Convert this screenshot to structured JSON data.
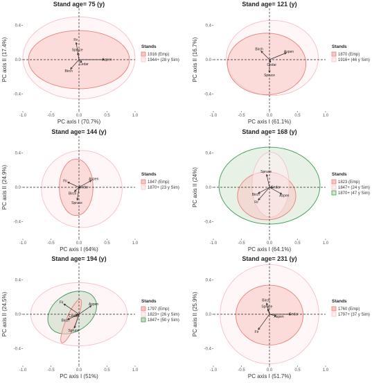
{
  "chart_data": [
    {
      "type": "scatter",
      "title": "Stand age= 75 (y)",
      "xlabel": "PC axis I (70.7%)",
      "ylabel": "PC axis II (17.4%)",
      "xticks": [
        "-1.0",
        "-0.5",
        "0.0",
        "0.5",
        "1.0"
      ],
      "yticks": [
        "-0.4",
        "0.0",
        "0.4"
      ],
      "xlim": [
        -1.0,
        1.0
      ],
      "ylim": [
        -0.6,
        0.6
      ],
      "legend_title": "Stands",
      "series": [
        {
          "name": "1916 (Emp)",
          "color": "#e8807a",
          "fill": "#f7c6c3",
          "ellipse": {
            "cx": 0.0,
            "cy": 0.0,
            "rx": 0.9,
            "ry": 0.34
          }
        },
        {
          "name": "1944+ (28 y Sim)",
          "color": "#f5c0c8",
          "fill": "#fdeef0",
          "ellipse": {
            "cx": 0.0,
            "cy": 0.02,
            "rx": 1.0,
            "ry": 0.48
          }
        }
      ],
      "loadings": [
        {
          "label": "Fir",
          "x": -0.05,
          "y": 0.2
        },
        {
          "label": "Spruce",
          "x": -0.02,
          "y": 0.08
        },
        {
          "label": "Aspen",
          "x": 0.45,
          "y": 0.0
        },
        {
          "label": "Cedar",
          "x": 0.05,
          "y": -0.03
        },
        {
          "label": "Birch",
          "x": -0.15,
          "y": -0.11
        }
      ]
    },
    {
      "type": "scatter",
      "title": "Stand age= 121 (y)",
      "xlabel": "PC axis I (61.1%)",
      "ylabel": "PC axis II (16.7%)",
      "xticks": [
        "-1.0",
        "-0.5",
        "0.0",
        "0.5",
        "1.0"
      ],
      "yticks": [
        "-0.4",
        "0.0",
        "0.4"
      ],
      "xlim": [
        -1.0,
        1.0
      ],
      "ylim": [
        -0.6,
        0.6
      ],
      "legend_title": "Stands",
      "series": [
        {
          "name": "1870 (Emp)",
          "color": "#e8807a",
          "fill": "#f7c6c3",
          "ellipse": {
            "cx": -0.05,
            "cy": -0.05,
            "rx": 0.7,
            "ry": 0.36
          }
        },
        {
          "name": "1916+ (46 y Sim)",
          "color": "#f5c0c8",
          "fill": "#fdeef0",
          "ellipse": {
            "cx": 0.05,
            "cy": 0.02,
            "rx": 0.82,
            "ry": 0.44
          }
        }
      ],
      "loadings": [
        {
          "label": "Birch",
          "x": -0.15,
          "y": 0.1
        },
        {
          "label": "Aspen",
          "x": 0.3,
          "y": 0.08
        },
        {
          "label": "Cedar",
          "x": 0.02,
          "y": -0.03
        },
        {
          "label": "Spruce",
          "x": 0.0,
          "y": -0.15
        }
      ]
    },
    {
      "type": "scatter",
      "title": "Stand age= 144 (y)",
      "xlabel": "PC axis I (64%)",
      "ylabel": "PC axis II (24.9%)",
      "xticks": [
        "-1.0",
        "-0.5",
        "0.0",
        "0.5",
        "1.0"
      ],
      "yticks": [
        "-0.4",
        "0.0",
        "0.4"
      ],
      "xlim": [
        -1.0,
        1.0
      ],
      "ylim": [
        -0.6,
        0.6
      ],
      "legend_title": "Stands",
      "series": [
        {
          "name": "1847 (Emp)",
          "color": "#e8807a",
          "fill": "#f7c6c3",
          "ellipse": {
            "cx": -0.05,
            "cy": 0.0,
            "rx": 0.3,
            "ry": 0.33
          }
        },
        {
          "name": "1870+ (23 y Sim)",
          "color": "#f5c0c8",
          "fill": "#fdeef0",
          "ellipse": {
            "cx": 0.05,
            "cy": -0.02,
            "rx": 0.72,
            "ry": 0.45
          }
        }
      ],
      "loadings": [
        {
          "label": "Fir",
          "x": -0.2,
          "y": 0.06
        },
        {
          "label": "Aspen",
          "x": 0.22,
          "y": 0.08
        },
        {
          "label": "Cedar",
          "x": 0.03,
          "y": 0.0
        },
        {
          "label": "Birch",
          "x": -0.08,
          "y": -0.05
        },
        {
          "label": "Spruce",
          "x": -0.03,
          "y": -0.15
        }
      ]
    },
    {
      "type": "scatter",
      "title": "Stand age= 168 (y)",
      "xlabel": "PC axis I (64.1%)",
      "ylabel": "PC axis II (24%)",
      "xticks": [
        "-1.0",
        "-0.5",
        "0.0",
        "0.5",
        "1.0"
      ],
      "yticks": [
        "-0.4",
        "0.0",
        "0.4"
      ],
      "xlim": [
        -1.0,
        1.0
      ],
      "ylim": [
        -0.6,
        0.6
      ],
      "legend_title": "Stands",
      "series": [
        {
          "name": "1823 (Emp)",
          "color": "#e8807a",
          "fill": "#f7c6c3",
          "ellipse": {
            "cx": -0.05,
            "cy": -0.1,
            "rx": 0.52,
            "ry": 0.28
          }
        },
        {
          "name": "1847+ (24 y Sim)",
          "color": "#f5c0c8",
          "fill": "#fdeef0",
          "ellipse": {
            "cx": 0.02,
            "cy": 0.03,
            "rx": 0.33,
            "ry": 0.38
          }
        },
        {
          "name": "1870+ (47 y Sim)",
          "color": "#3a9a52",
          "fill": "#d5e6d2",
          "ellipse": {
            "cx": 0.0,
            "cy": 0.02,
            "rx": 0.9,
            "ry": 0.45
          }
        }
      ],
      "loadings": [
        {
          "label": "Spruce",
          "x": -0.05,
          "y": 0.15
        },
        {
          "label": "Cedar",
          "x": 0.06,
          "y": 0.0
        },
        {
          "label": "Birch",
          "x": -0.2,
          "y": -0.07
        },
        {
          "label": "Fir",
          "x": -0.2,
          "y": -0.15
        },
        {
          "label": "Aspen",
          "x": 0.22,
          "y": -0.08
        }
      ]
    },
    {
      "type": "scatter",
      "title": "Stand age= 194 (y)",
      "xlabel": "PC axis I (51%)",
      "ylabel": "PC axis II (24.5%)",
      "xticks": [
        "-1.0",
        "-0.5",
        "0.0",
        "0.5",
        "1.0"
      ],
      "yticks": [
        "-0.4",
        "0.0",
        "0.4"
      ],
      "xlim": [
        -1.0,
        1.0
      ],
      "ylim": [
        -0.6,
        0.6
      ],
      "legend_title": "Stands",
      "series": [
        {
          "name": "1797 (Emp)",
          "color": "#e8807a",
          "fill": "#f7c6c3",
          "ellipse": {
            "cx": -0.14,
            "cy": -0.08,
            "rx": 0.42,
            "ry": 0.06,
            "angle": 67
          }
        },
        {
          "name": "1823+ (26 y Sim)",
          "color": "#f5c0c8",
          "fill": "#fdeef0",
          "ellipse": {
            "cx": 0.0,
            "cy": 0.0,
            "rx": 0.86,
            "ry": 0.37
          }
        },
        {
          "name": "1847+ (50 y Sim)",
          "color": "#3a9a52",
          "fill": "#c8d8c2",
          "ellipse": {
            "cx": -0.12,
            "cy": 0.02,
            "rx": 0.47,
            "ry": 0.22,
            "angle": 33
          }
        }
      ],
      "loadings": [
        {
          "label": "Fir",
          "x": -0.27,
          "y": 0.12
        },
        {
          "label": "Aspen",
          "x": 0.22,
          "y": 0.1
        },
        {
          "label": "Cedar",
          "x": -0.05,
          "y": -0.01
        },
        {
          "label": "Birch",
          "x": -0.2,
          "y": -0.06
        },
        {
          "label": "Spruce",
          "x": -0.08,
          "y": -0.16
        }
      ]
    },
    {
      "type": "scatter",
      "title": "Stand age= 231 (y)",
      "xlabel": "PC axis I (51.7%)",
      "ylabel": "PC axis II (25.9%)",
      "xticks": [
        "-1.0",
        "-0.5",
        "0.0",
        "0.5",
        "1.0"
      ],
      "yticks": [
        "-0.4",
        "0.0",
        "0.4"
      ],
      "xlim": [
        -1.0,
        1.0
      ],
      "ylim": [
        -0.6,
        0.6
      ],
      "legend_title": "Stands",
      "series": [
        {
          "name": "1760 (Emp)",
          "color": "#e8807a",
          "fill": "#f7c6c3",
          "ellipse": {
            "cx": 0.0,
            "cy": -0.01,
            "rx": 0.6,
            "ry": 0.35
          }
        },
        {
          "name": "1797+ (37 y Sim)",
          "color": "#f5c0c8",
          "fill": "#fdeef0",
          "ellipse": {
            "cx": 0.0,
            "cy": 0.0,
            "rx": 0.88,
            "ry": 0.58
          }
        }
      ],
      "loadings": [
        {
          "label": "Birch",
          "x": -0.05,
          "y": 0.13
        },
        {
          "label": "Spruce",
          "x": -0.03,
          "y": 0.06
        },
        {
          "label": "Cedar",
          "x": 0.38,
          "y": 0.0
        },
        {
          "label": "Aspen",
          "x": 0.12,
          "y": -0.02
        },
        {
          "label": "Fir",
          "x": -0.2,
          "y": -0.18
        }
      ]
    }
  ]
}
